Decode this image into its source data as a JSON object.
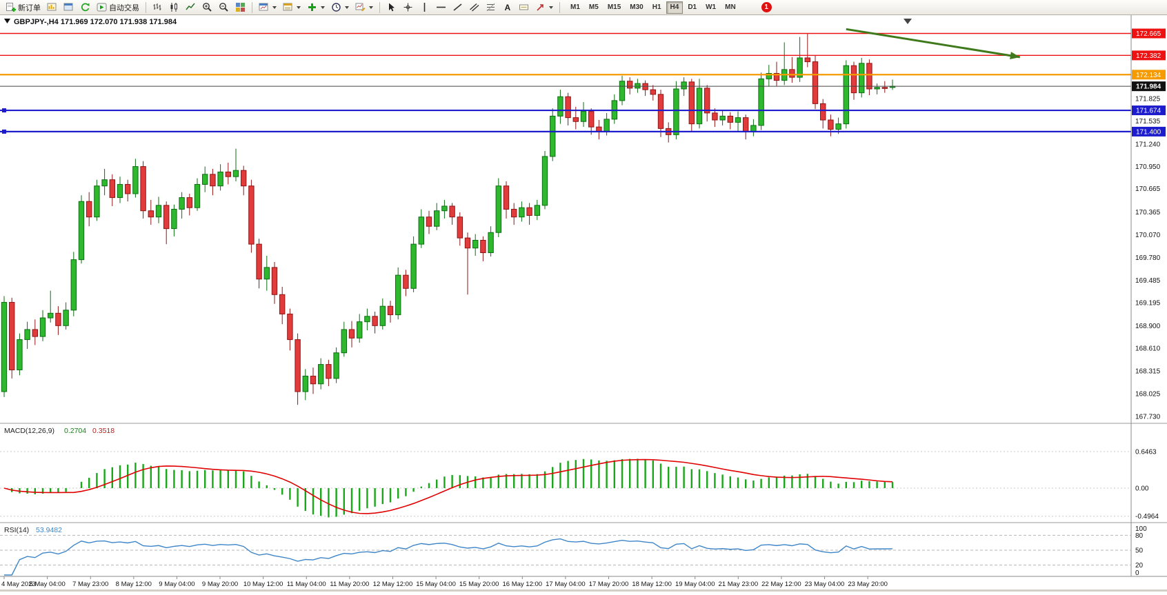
{
  "toolbar": {
    "new_order_label": "新订单",
    "autotrade_label": "自动交易",
    "text_tool_glyph": "A",
    "timeframes": [
      "M1",
      "M5",
      "M15",
      "M30",
      "H1",
      "H4",
      "D1",
      "W1",
      "MN"
    ],
    "active_timeframe": "H4",
    "notification_badge": "1"
  },
  "chart": {
    "title": "GBPJPY-,H4 171.969 172.070 171.938 171.984",
    "symbol": "GBPJPY-",
    "period": "H4",
    "macd_label": "MACD(12,26,9)",
    "macd_value": "0.2704",
    "macd_signal_value": "0.3518",
    "rsi_label": "RSI(14)",
    "rsi_value": "53.9482"
  },
  "chart_data": {
    "type": "candlestick",
    "title": "GBPJPY-,H4",
    "symbol": "GBPJPY-",
    "timeframe": "H4",
    "ohlc_current": {
      "open": 171.969,
      "high": 172.07,
      "low": 171.938,
      "close": 171.984
    },
    "y_axis": {
      "range": [
        167.68,
        172.75
      ],
      "tick_labels": [
        "171.825",
        "171.535",
        "171.240",
        "170.950",
        "170.665",
        "170.365",
        "170.070",
        "169.780",
        "169.485",
        "169.195",
        "168.900",
        "168.610",
        "168.315",
        "168.025",
        "167.730"
      ]
    },
    "x_axis": {
      "candles_per_label": 5.59,
      "labels": [
        "4 May 2023",
        "5 May 04:00",
        "7 May 23:00",
        "8 May 12:00",
        "9 May 04:00",
        "9 May 20:00",
        "10 May 12:00",
        "11 May 04:00",
        "11 May 20:00",
        "12 May 12:00",
        "15 May 04:00",
        "15 May 20:00",
        "16 May 12:00",
        "17 May 04:00",
        "17 May 20:00",
        "18 May 12:00",
        "19 May 04:00",
        "21 May 23:00",
        "22 May 12:00",
        "23 May 04:00",
        "23 May 20:00"
      ]
    },
    "horizontal_levels": [
      {
        "price": 172.665,
        "label": "172.665",
        "color": "#ee1111",
        "width": 1.4,
        "selected": false
      },
      {
        "price": 172.382,
        "label": "172.382",
        "color": "#ee1111",
        "width": 1.4,
        "selected": false
      },
      {
        "price": 172.134,
        "label": "172.134",
        "color": "#f59a00",
        "width": 2.2,
        "selected": false
      },
      {
        "price": 171.674,
        "label": "171.674",
        "color": "#1c1ccd",
        "width": 2.2,
        "selected": true
      },
      {
        "price": 171.4,
        "label": "171.400",
        "color": "#1c1ccd",
        "width": 2.2,
        "selected": true
      }
    ],
    "bid": {
      "price": 171.984,
      "label": "171.984",
      "tag_color": "#111111"
    },
    "trend_arrow": {
      "from_index": 109,
      "from_price": 172.72,
      "to_index": 131.5,
      "to_price": 172.36,
      "color": "#3e7a1c"
    },
    "up_color": "#2db82d",
    "down_color": "#e23b3b",
    "candles_ohlc": [
      [
        168.05,
        169.28,
        167.98,
        169.2
      ],
      [
        169.2,
        169.26,
        168.22,
        168.33
      ],
      [
        168.33,
        168.8,
        168.26,
        168.72
      ],
      [
        168.72,
        168.95,
        168.6,
        168.85
      ],
      [
        168.85,
        168.98,
        168.65,
        168.76
      ],
      [
        168.76,
        169.1,
        168.7,
        169.0
      ],
      [
        169.0,
        169.35,
        168.94,
        169.06
      ],
      [
        169.06,
        169.15,
        168.78,
        168.9
      ],
      [
        168.9,
        169.2,
        168.85,
        169.1
      ],
      [
        169.1,
        169.85,
        169.02,
        169.75
      ],
      [
        169.75,
        170.58,
        169.7,
        170.5
      ],
      [
        170.5,
        170.62,
        170.18,
        170.3
      ],
      [
        170.3,
        170.78,
        170.25,
        170.7
      ],
      [
        170.7,
        170.92,
        170.58,
        170.78
      ],
      [
        170.78,
        170.85,
        170.44,
        170.55
      ],
      [
        170.55,
        170.82,
        170.48,
        170.72
      ],
      [
        170.72,
        170.78,
        170.5,
        170.6
      ],
      [
        170.6,
        171.05,
        170.55,
        170.95
      ],
      [
        170.95,
        171.02,
        170.28,
        170.38
      ],
      [
        170.38,
        170.52,
        170.2,
        170.3
      ],
      [
        170.3,
        170.56,
        170.22,
        170.45
      ],
      [
        170.45,
        170.5,
        169.95,
        170.15
      ],
      [
        170.15,
        170.46,
        170.05,
        170.4
      ],
      [
        170.4,
        170.62,
        170.28,
        170.55
      ],
      [
        170.55,
        170.6,
        170.32,
        170.42
      ],
      [
        170.42,
        170.8,
        170.38,
        170.72
      ],
      [
        170.72,
        170.95,
        170.62,
        170.85
      ],
      [
        170.85,
        170.92,
        170.58,
        170.7
      ],
      [
        170.7,
        170.98,
        170.64,
        170.88
      ],
      [
        170.88,
        171.0,
        170.72,
        170.82
      ],
      [
        170.82,
        171.18,
        170.76,
        170.9
      ],
      [
        170.9,
        170.96,
        170.58,
        170.7
      ],
      [
        170.7,
        170.78,
        169.84,
        169.95
      ],
      [
        169.95,
        170.02,
        169.38,
        169.5
      ],
      [
        169.5,
        169.8,
        169.35,
        169.65
      ],
      [
        169.65,
        169.72,
        169.18,
        169.3
      ],
      [
        169.3,
        169.4,
        168.92,
        169.05
      ],
      [
        169.05,
        169.12,
        168.58,
        168.72
      ],
      [
        168.72,
        168.8,
        167.88,
        168.05
      ],
      [
        168.05,
        168.34,
        167.94,
        168.25
      ],
      [
        168.25,
        168.36,
        168.02,
        168.15
      ],
      [
        168.15,
        168.48,
        168.08,
        168.4
      ],
      [
        168.4,
        168.46,
        168.12,
        168.22
      ],
      [
        168.22,
        168.62,
        168.16,
        168.55
      ],
      [
        168.55,
        168.95,
        168.5,
        168.85
      ],
      [
        168.85,
        168.96,
        168.62,
        168.74
      ],
      [
        168.74,
        169.05,
        168.68,
        168.95
      ],
      [
        168.95,
        169.12,
        168.84,
        169.02
      ],
      [
        169.02,
        169.08,
        168.8,
        168.9
      ],
      [
        168.9,
        169.25,
        168.85,
        169.15
      ],
      [
        169.15,
        169.22,
        168.94,
        169.04
      ],
      [
        169.04,
        169.65,
        168.98,
        169.55
      ],
      [
        169.55,
        169.62,
        169.28,
        169.38
      ],
      [
        169.38,
        170.05,
        169.33,
        169.95
      ],
      [
        169.95,
        170.4,
        169.9,
        170.3
      ],
      [
        170.3,
        170.38,
        170.08,
        170.18
      ],
      [
        170.18,
        170.48,
        170.13,
        170.38
      ],
      [
        170.38,
        170.52,
        170.28,
        170.44
      ],
      [
        170.44,
        170.48,
        170.2,
        170.3
      ],
      [
        170.3,
        170.36,
        169.93,
        170.03
      ],
      [
        170.03,
        170.1,
        169.3,
        169.9
      ],
      [
        169.9,
        170.08,
        169.8,
        170.0
      ],
      [
        170.0,
        170.05,
        169.73,
        169.84
      ],
      [
        169.84,
        170.18,
        169.79,
        170.1
      ],
      [
        170.1,
        170.8,
        170.04,
        170.7
      ],
      [
        170.7,
        170.76,
        170.28,
        170.4
      ],
      [
        170.4,
        170.48,
        170.2,
        170.3
      ],
      [
        170.3,
        170.5,
        170.24,
        170.42
      ],
      [
        170.42,
        170.48,
        170.2,
        170.32
      ],
      [
        170.32,
        170.52,
        170.26,
        170.45
      ],
      [
        170.45,
        171.15,
        170.4,
        171.08
      ],
      [
        171.08,
        171.7,
        171.02,
        171.6
      ],
      [
        171.6,
        171.94,
        171.5,
        171.85
      ],
      [
        171.85,
        171.9,
        171.48,
        171.58
      ],
      [
        171.58,
        171.72,
        171.43,
        171.53
      ],
      [
        171.53,
        171.78,
        171.46,
        171.66
      ],
      [
        171.66,
        171.7,
        171.36,
        171.46
      ],
      [
        171.46,
        171.55,
        171.3,
        171.4
      ],
      [
        171.4,
        171.64,
        171.35,
        171.56
      ],
      [
        171.56,
        171.88,
        171.5,
        171.8
      ],
      [
        171.8,
        172.12,
        171.74,
        172.05
      ],
      [
        172.05,
        172.1,
        171.88,
        171.96
      ],
      [
        171.96,
        172.08,
        171.9,
        172.02
      ],
      [
        172.02,
        172.06,
        171.86,
        171.94
      ],
      [
        171.94,
        172.0,
        171.8,
        171.88
      ],
      [
        171.88,
        171.94,
        171.33,
        171.44
      ],
      [
        171.44,
        171.52,
        171.26,
        171.36
      ],
      [
        171.36,
        172.05,
        171.3,
        171.95
      ],
      [
        171.95,
        172.1,
        171.86,
        172.04
      ],
      [
        172.04,
        172.08,
        171.4,
        171.5
      ],
      [
        171.5,
        172.08,
        171.44,
        171.96
      ],
      [
        171.96,
        172.0,
        171.53,
        171.64
      ],
      [
        171.64,
        171.7,
        171.46,
        171.55
      ],
      [
        171.55,
        171.68,
        171.48,
        171.6
      ],
      [
        171.6,
        171.65,
        171.43,
        171.52
      ],
      [
        171.52,
        171.66,
        171.4,
        171.58
      ],
      [
        171.58,
        171.62,
        171.3,
        171.4
      ],
      [
        171.4,
        171.56,
        171.34,
        171.48
      ],
      [
        171.48,
        172.16,
        171.42,
        172.08
      ],
      [
        172.08,
        172.26,
        171.98,
        172.15
      ],
      [
        172.15,
        172.3,
        171.99,
        172.06
      ],
      [
        172.06,
        172.55,
        172.0,
        172.2
      ],
      [
        172.2,
        172.36,
        172.03,
        172.1
      ],
      [
        172.1,
        172.62,
        172.04,
        172.35
      ],
      [
        172.35,
        172.66,
        172.23,
        172.3
      ],
      [
        172.3,
        172.38,
        171.69,
        171.76
      ],
      [
        171.76,
        171.82,
        171.44,
        171.55
      ],
      [
        171.55,
        171.62,
        171.34,
        171.43
      ],
      [
        171.43,
        171.58,
        171.37,
        171.5
      ],
      [
        171.5,
        172.32,
        171.44,
        172.25
      ],
      [
        172.25,
        172.3,
        171.81,
        171.9
      ],
      [
        171.9,
        172.35,
        171.84,
        172.28
      ],
      [
        172.28,
        172.33,
        171.87,
        171.95
      ],
      [
        171.95,
        172.02,
        171.88,
        171.97
      ],
      [
        171.97,
        172.05,
        171.9,
        171.969
      ],
      [
        171.969,
        172.07,
        171.938,
        171.984
      ]
    ],
    "indicators": [
      {
        "type": "macd",
        "label": "MACD(12,26,9)",
        "fast": 12,
        "slow": 26,
        "signal": 9,
        "current_macd": 0.2704,
        "current_signal": 0.3518,
        "axis_labels": [
          "0.6463",
          "0.00",
          "-0.4964"
        ],
        "histogram_color": "#18a818",
        "signal_color": "#e00000"
      },
      {
        "type": "rsi",
        "label": "RSI(14)",
        "period": 14,
        "current": 53.9482,
        "levels": [
          80,
          50,
          20
        ],
        "axis_labels": [
          "100",
          "80",
          "50",
          "20",
          "0"
        ],
        "line_color": "#3d85c8",
        "ylim": [
          0,
          100
        ]
      }
    ]
  }
}
